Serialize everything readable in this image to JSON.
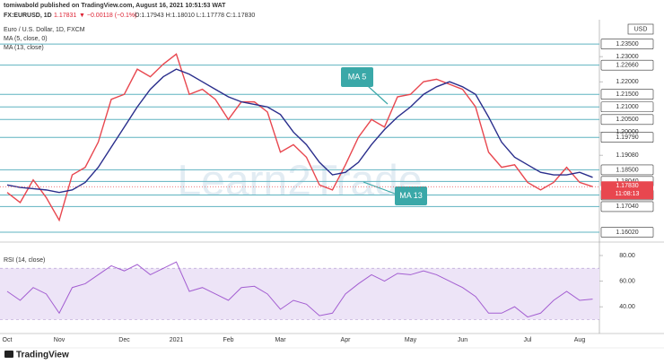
{
  "header": {
    "author_line": "tomiwabold published on TradingView.com, August 16, 2021 10:51:53 WAT",
    "symbol": "FX:EURUSD, 1D",
    "last": "1.17831",
    "change": "▼ −0.00118 (−0.1%)",
    "ohlc": "O:1.17943 H:1.18010 L:1.17778 C:1.17830"
  },
  "chart_data": [
    {
      "type": "line",
      "title": "Euro / U.S. Dollar, 1D, FXCM",
      "categories": [
        "Oct",
        null,
        null,
        null,
        "Nov",
        null,
        null,
        null,
        null,
        "Dec",
        null,
        null,
        null,
        "2021",
        null,
        null,
        null,
        "Feb",
        null,
        null,
        null,
        "Mar",
        null,
        null,
        null,
        null,
        "Apr",
        null,
        null,
        null,
        null,
        "May",
        null,
        null,
        null,
        "Jun",
        null,
        null,
        null,
        null,
        "Jul",
        null,
        null,
        null,
        "Aug",
        null
      ],
      "series": [
        {
          "name": "MA (5, close, 0)",
          "color": "#e8474f",
          "values": [
            1.176,
            1.172,
            1.181,
            1.174,
            1.165,
            1.183,
            1.186,
            1.196,
            1.213,
            1.215,
            1.225,
            1.222,
            1.227,
            1.231,
            1.215,
            1.217,
            1.213,
            1.205,
            1.212,
            1.212,
            1.208,
            1.192,
            1.195,
            1.19,
            1.179,
            1.177,
            1.187,
            1.198,
            1.205,
            1.202,
            1.214,
            1.215,
            1.22,
            1.221,
            1.219,
            1.217,
            1.21,
            1.192,
            1.186,
            1.187,
            1.18,
            1.177,
            1.18,
            1.186,
            1.18,
            1.1783
          ]
        },
        {
          "name": "MA (13, close)",
          "color": "#2a2e8c",
          "values": [
            1.179,
            1.178,
            1.1775,
            1.177,
            1.176,
            1.177,
            1.18,
            1.186,
            1.194,
            1.202,
            1.21,
            1.217,
            1.222,
            1.225,
            1.223,
            1.22,
            1.217,
            1.214,
            1.212,
            1.211,
            1.21,
            1.207,
            1.2,
            1.195,
            1.188,
            1.183,
            1.184,
            1.188,
            1.195,
            1.201,
            1.206,
            1.21,
            1.215,
            1.218,
            1.22,
            1.218,
            1.215,
            1.206,
            1.196,
            1.19,
            1.187,
            1.184,
            1.183,
            1.183,
            1.184,
            1.182
          ]
        }
      ],
      "ylim": [
        1.157,
        1.2418
      ],
      "yticks": [
        {
          "value": 1.23,
          "label": "1.23000"
        },
        {
          "value": 1.22,
          "label": "1.22000"
        },
        {
          "value": 1.2,
          "label": "1.20000"
        },
        {
          "value": 1.1908,
          "label": "1.19080"
        }
      ],
      "levels": [
        {
          "value": 1.235,
          "label": "1.23500"
        },
        {
          "value": 1.2266,
          "label": "1.22660"
        },
        {
          "value": 1.215,
          "label": "1.21500"
        },
        {
          "value": 1.21,
          "label": "1.21000"
        },
        {
          "value": 1.205,
          "label": "1.20500"
        },
        {
          "value": 1.1979,
          "label": "1.19790"
        },
        {
          "value": 1.185,
          "label": "1.18500"
        },
        {
          "value": 1.1804,
          "label": "1.18040"
        },
        {
          "value": 1.175,
          "label": "1.17502"
        },
        {
          "value": 1.1704,
          "label": "1.17040"
        },
        {
          "value": 1.1602,
          "label": "1.16020"
        }
      ],
      "level_color": "#5fb3c0",
      "currency": "USD",
      "last_price": {
        "value": 1.1783,
        "label": "1.17830"
      },
      "countdown": "11:08:13",
      "annotations": [
        "MA 5",
        "MA 13"
      ],
      "watermark": "Learn2Trade"
    },
    {
      "type": "line",
      "title": "RSI (14, close)",
      "series": [
        {
          "color": "#a35ed1",
          "values": [
            52,
            45,
            55,
            50,
            35,
            55,
            58,
            65,
            72,
            68,
            73,
            65,
            70,
            75,
            52,
            55,
            50,
            45,
            55,
            56,
            50,
            38,
            45,
            42,
            33,
            35,
            50,
            58,
            65,
            60,
            66,
            65,
            68,
            65,
            60,
            55,
            48,
            35,
            35,
            40,
            32,
            35,
            45,
            52,
            45,
            46
          ]
        }
      ],
      "ylim": [
        24,
        90.5
      ],
      "yticks": [
        {
          "value": 80,
          "label": "80.00"
        },
        {
          "value": 60,
          "label": "60.00"
        },
        {
          "value": 40,
          "label": "40.00"
        }
      ],
      "band": [
        30,
        70
      ]
    }
  ],
  "footer": {
    "brand": "TradingView"
  }
}
